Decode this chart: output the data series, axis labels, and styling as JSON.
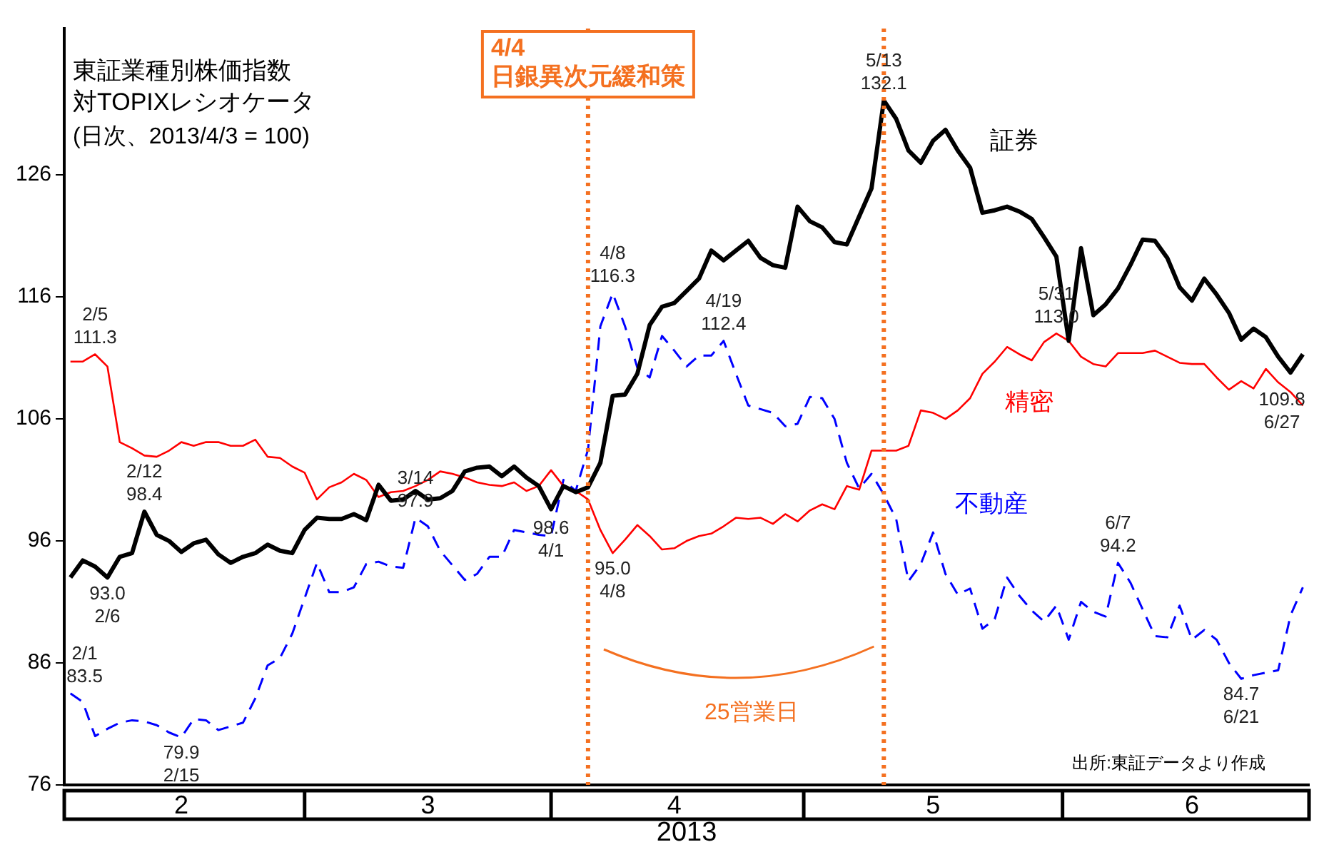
{
  "chart_data": {
    "type": "line",
    "title": "東証業種別株価指数対TOPIXレシオケータ",
    "subtitle": "(日次、2013/4/3 = 100)",
    "xlabel": "2013",
    "categories": [
      null,
      null,
      null,
      null,
      null,
      null,
      null,
      null,
      null,
      "2",
      null,
      null,
      null,
      null,
      null,
      null,
      null,
      null,
      null,
      null,
      null,
      null,
      null,
      null,
      null,
      null,
      null,
      null,
      null,
      "3",
      null,
      null,
      null,
      null,
      null,
      null,
      null,
      null,
      null,
      null,
      null,
      null,
      null,
      null,
      null,
      null,
      null,
      null,
      null,
      "4",
      null,
      null,
      null,
      null,
      null,
      null,
      null,
      null,
      null,
      null,
      null,
      null,
      null,
      null,
      null,
      null,
      null,
      null,
      null,
      null,
      "5",
      null,
      null,
      null,
      null,
      null,
      null,
      null,
      null,
      null,
      null,
      null,
      null,
      null,
      null,
      null,
      null,
      null,
      null,
      null,
      null,
      "6",
      null,
      null,
      null,
      null,
      null,
      null,
      null,
      null,
      null
    ],
    "ylim": [
      76,
      138
    ],
    "yticks": [
      76,
      86,
      96,
      106,
      116,
      126
    ],
    "grid": false,
    "legend": false,
    "marker": "none",
    "series": [
      {
        "name": "証券",
        "color": "#000000",
        "line_style": "solid",
        "values": [
          93.0,
          94.4,
          93.9,
          93.0,
          94.7,
          95.0,
          98.4,
          96.5,
          96.0,
          95.1,
          95.8,
          96.1,
          94.9,
          94.2,
          94.7,
          95.0,
          95.7,
          95.2,
          95.0,
          96.9,
          97.9,
          97.8,
          97.8,
          98.2,
          97.7,
          100.6,
          99.3,
          99.4,
          100.1,
          99.4,
          99.5,
          100.1,
          101.7,
          102.0,
          102.1,
          101.3,
          102.1,
          101.2,
          100.5,
          98.6,
          100.5,
          100.0,
          100.4,
          102.4,
          107.9,
          108.0,
          109.7,
          113.7,
          115.2,
          115.5,
          116.5,
          117.5,
          119.8,
          119.0,
          119.8,
          120.6,
          119.2,
          118.6,
          118.4,
          123.4,
          122.2,
          121.7,
          120.5,
          120.3,
          122.6,
          124.9,
          132.1,
          130.6,
          128.0,
          127.0,
          128.8,
          129.7,
          128.0,
          126.6,
          122.9,
          123.1,
          123.4,
          123.0,
          122.4,
          120.9,
          119.3,
          112.4,
          120.0,
          114.5,
          115.4,
          116.7,
          118.6,
          120.7,
          120.6,
          119.2,
          116.8,
          115.7,
          117.5,
          116.2,
          114.7,
          112.5,
          113.4,
          112.7,
          111.1,
          109.8,
          111.3
        ]
      },
      {
        "name": "精密",
        "color": "#ff0000",
        "line_style": "solid",
        "values": [
          110.7,
          110.7,
          111.3,
          110.3,
          104.1,
          103.6,
          103.0,
          102.9,
          103.4,
          104.1,
          103.8,
          104.1,
          104.1,
          103.8,
          103.8,
          104.3,
          102.9,
          102.8,
          102.1,
          101.6,
          99.4,
          100.4,
          100.8,
          101.5,
          101.0,
          99.6,
          100.0,
          100.1,
          100.5,
          101.0,
          101.7,
          101.5,
          101.2,
          100.8,
          100.6,
          100.5,
          100.8,
          100.1,
          100.5,
          101.8,
          100.5,
          100.1,
          99.4,
          96.9,
          95.0,
          96.1,
          97.3,
          96.4,
          95.3,
          95.4,
          96.0,
          96.4,
          96.6,
          97.2,
          97.9,
          97.8,
          97.9,
          97.4,
          98.2,
          97.6,
          98.5,
          99.0,
          98.6,
          100.5,
          100.2,
          103.4,
          103.4,
          103.4,
          103.8,
          106.7,
          106.5,
          106.0,
          106.7,
          107.7,
          109.7,
          110.7,
          111.9,
          111.3,
          110.8,
          112.3,
          113.0,
          112.4,
          111.1,
          110.5,
          110.3,
          111.4,
          111.4,
          111.4,
          111.6,
          111.1,
          110.6,
          110.5,
          110.5,
          109.4,
          108.4,
          109.1,
          108.5,
          110.1,
          109.0,
          108.2,
          107.1
        ]
      },
      {
        "name": "不動産",
        "color": "#0000ff",
        "line_style": "dashed",
        "values": [
          83.5,
          82.8,
          80.0,
          80.6,
          81.1,
          81.3,
          81.2,
          80.9,
          80.3,
          79.9,
          81.4,
          81.3,
          80.5,
          80.8,
          81.1,
          83.1,
          85.8,
          86.4,
          88.4,
          91.3,
          94.2,
          91.8,
          91.8,
          92.2,
          94.1,
          94.3,
          93.9,
          93.8,
          97.9,
          97.2,
          95.2,
          94.0,
          92.8,
          93.3,
          94.7,
          94.7,
          96.9,
          96.7,
          96.5,
          96.4,
          101.0,
          100.1,
          103.5,
          113.6,
          116.3,
          113.6,
          110.2,
          109.4,
          112.8,
          111.6,
          110.3,
          111.2,
          111.2,
          112.4,
          109.7,
          107.1,
          106.8,
          106.5,
          105.4,
          105.6,
          107.8,
          107.7,
          106.0,
          102.4,
          100.3,
          101.5,
          99.8,
          97.8,
          92.7,
          94.1,
          96.7,
          93.3,
          91.6,
          92.1,
          88.8,
          89.6,
          93.0,
          91.5,
          90.3,
          89.4,
          90.7,
          87.9,
          91.0,
          90.2,
          89.8,
          94.2,
          92.6,
          90.4,
          88.2,
          88.1,
          90.7,
          87.9,
          88.7,
          87.9,
          86.0,
          84.7,
          85.0,
          85.2,
          85.4,
          89.9,
          92.2
        ]
      }
    ],
    "ref_lines": [
      {
        "axis": "x",
        "label": "4/4\n日銀異次元緩和策",
        "color": "#f47020",
        "line_style": "dotted"
      },
      {
        "axis": "x",
        "color": "#f47020",
        "line_style": "dotted"
      }
    ],
    "annotations": [
      {
        "text": "2/1\n83.5",
        "y": 83.5
      },
      {
        "text": "2/5\n111.3",
        "y": 111.3
      },
      {
        "text": "93.0\n2/6",
        "y": 93.0
      },
      {
        "text": "2/12\n98.4",
        "y": 98.4
      },
      {
        "text": "79.9\n2/15",
        "y": 79.9
      },
      {
        "text": "3/14\n97.9",
        "y": 97.9
      },
      {
        "text": "98.6\n4/1",
        "y": 98.6
      },
      {
        "text": "4/8\n116.3",
        "y": 116.3
      },
      {
        "text": "95.0\n4/8",
        "y": 95.0
      },
      {
        "text": "4/19\n112.4",
        "y": 112.4
      },
      {
        "text": "5/13\n132.1",
        "y": 132.1
      },
      {
        "text": "5/31\n113.0",
        "y": 113.0
      },
      {
        "text": "6/7\n94.2",
        "y": 94.2
      },
      {
        "text": "84.7\n6/21",
        "y": 84.7
      },
      {
        "text": "109.8\n6/27",
        "y": 109.8
      },
      "25営業日",
      "出所:東証データより作成"
    ]
  }
}
